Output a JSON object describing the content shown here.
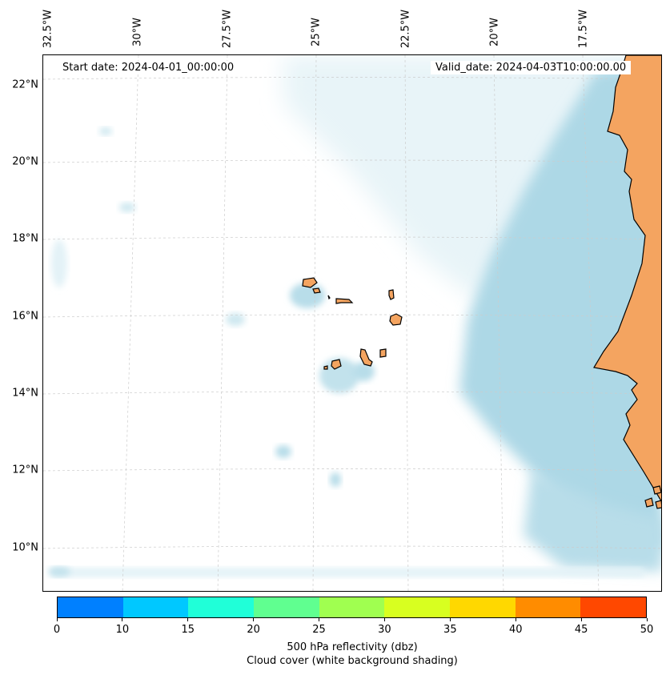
{
  "info": {
    "start_date": "Start date: 2024-04-01_00:00:00",
    "valid_date": "Valid_date: 2024-04-03T10:00:00.00"
  },
  "map": {
    "longitude_labels": [
      "32.5°W",
      "30°W",
      "27.5°W",
      "25°W",
      "22.5°W",
      "20°W",
      "17.5°W"
    ],
    "latitude_labels": [
      "22°N",
      "20°N",
      "18°N",
      "16°N",
      "14°N",
      "12°N",
      "10°N"
    ],
    "land_color": "#f4a460",
    "cloud_color": "#add8e6",
    "gridline_color": "#cccccc"
  },
  "colorbar": {
    "tick_labels": [
      "0",
      "10",
      "15",
      "20",
      "25",
      "30",
      "35",
      "40",
      "45",
      "50"
    ],
    "colors": [
      "#0080ff",
      "#00c8ff",
      "#20ffd8",
      "#60ff90",
      "#a0ff50",
      "#d8ff20",
      "#ffd800",
      "#ff8c00",
      "#ff4800"
    ],
    "label": "500 hPa reflectivity (dbz)",
    "sublabel": "Cloud cover (white background shading)"
  }
}
